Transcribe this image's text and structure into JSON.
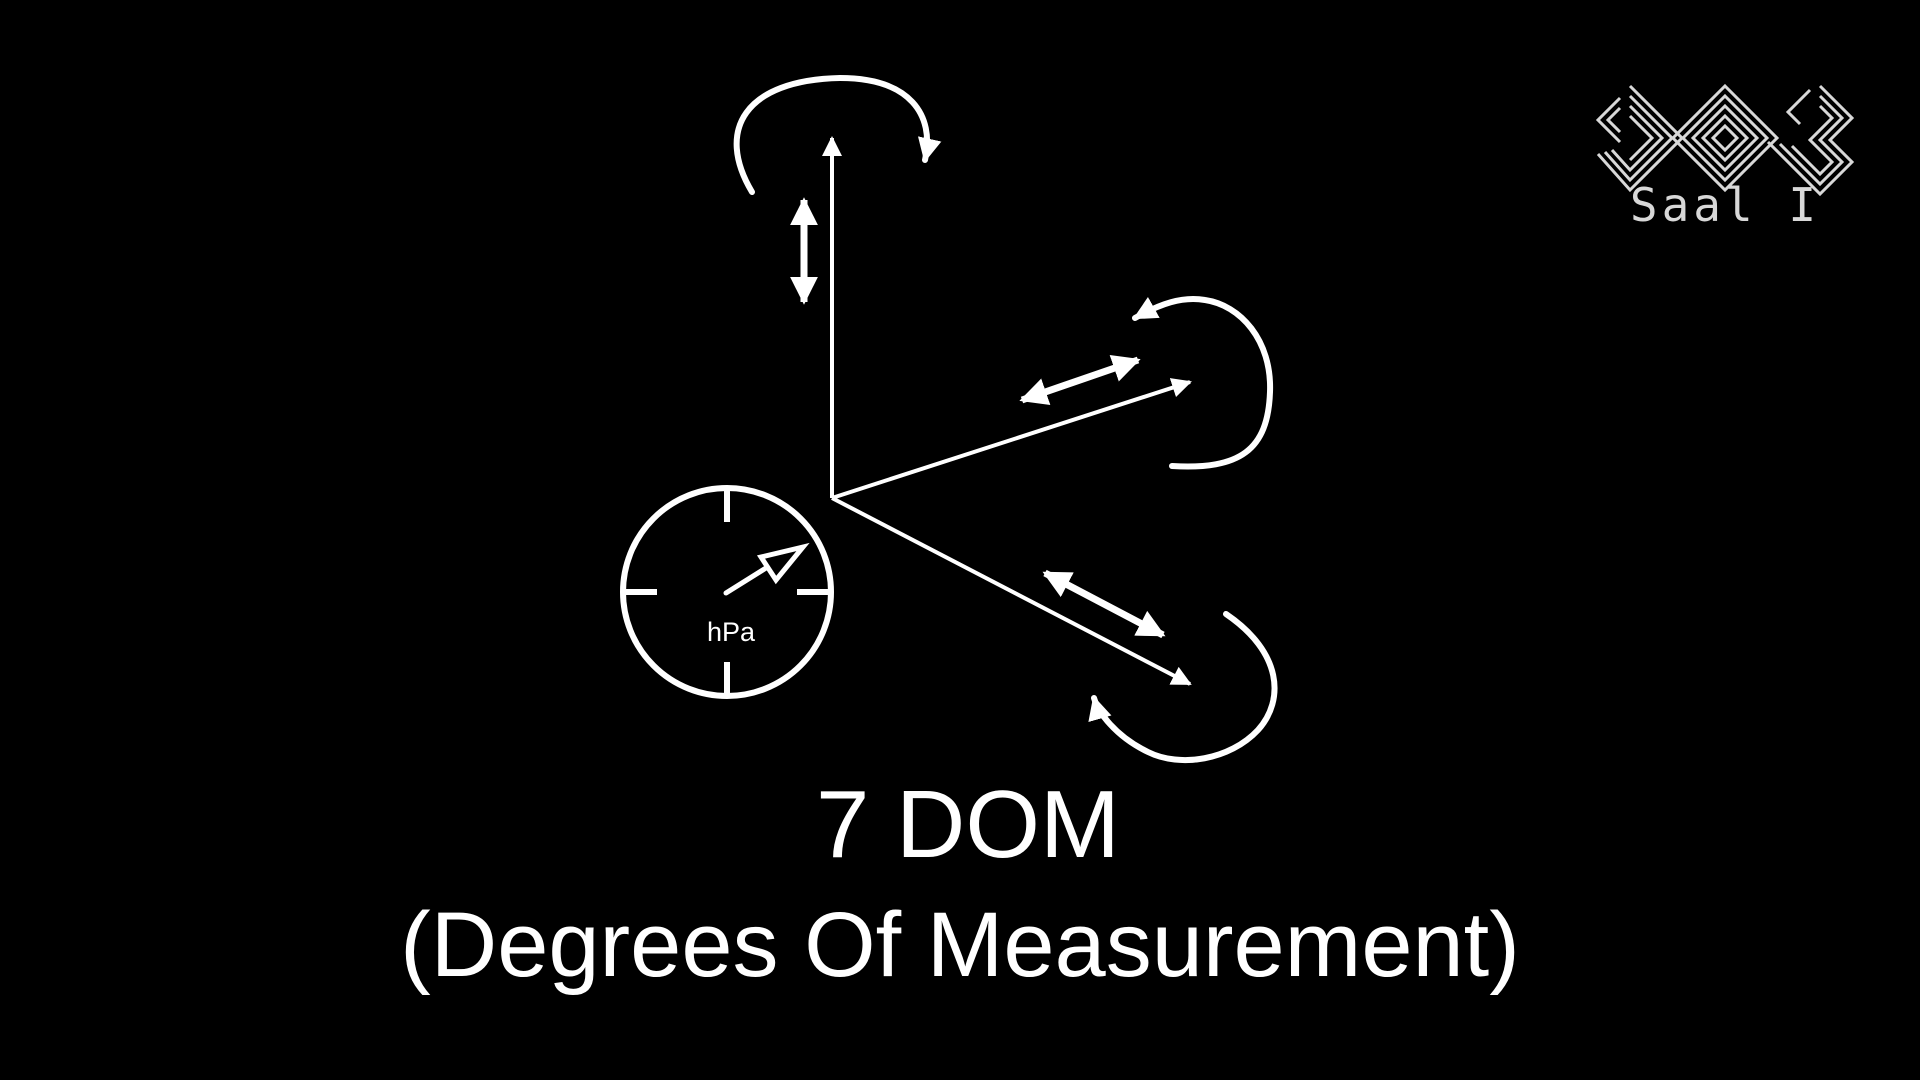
{
  "logo": {
    "name": "event-logo",
    "room_label": "Saal I"
  },
  "diagram": {
    "gauge_unit": "hPa",
    "title_main": "7 DOM",
    "title_sub": "(Degrees Of Measurement)"
  },
  "colors": {
    "background": "#000000",
    "foreground": "#ffffff",
    "logo": "#d8d8d8"
  }
}
